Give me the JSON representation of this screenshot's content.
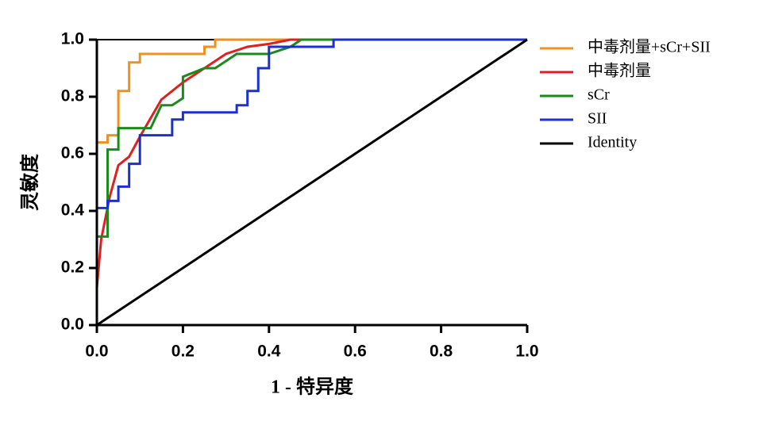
{
  "chart_data": {
    "type": "line",
    "xlabel": "1 - 特异度",
    "ylabel": "灵敏度",
    "xlim": [
      0,
      1
    ],
    "ylim": [
      0,
      1
    ],
    "xticks": [
      {
        "value": 0,
        "label": "0.0"
      },
      0.2,
      0.4,
      0.6,
      0.8,
      {
        "value": 1,
        "label": "1.0"
      }
    ],
    "yticks": [
      {
        "value": 0,
        "label": "0.0"
      },
      0.2,
      0.4,
      0.6,
      0.8,
      {
        "value": 1,
        "label": "1.0"
      }
    ],
    "legend": "right",
    "series": [
      {
        "name": "中毒剂量+sCr+SII",
        "color": "#f0901e",
        "x": [
          0,
          0,
          0.025,
          0.025,
          0.05,
          0.05,
          0.075,
          0.075,
          0.1,
          0.1,
          0.25,
          0.25,
          0.275,
          0.275,
          1
        ],
        "values": [
          0,
          0.64,
          0.64,
          0.665,
          0.665,
          0.82,
          0.82,
          0.92,
          0.92,
          0.95,
          0.95,
          0.975,
          0.975,
          1,
          1
        ]
      },
      {
        "name": "中毒剂量",
        "color": "#e02020",
        "x": [
          0,
          0.01,
          0.03,
          0.05,
          0.075,
          0.1,
          0.15,
          0.2,
          0.25,
          0.3,
          0.35,
          0.4,
          0.45,
          1
        ],
        "values": [
          0.13,
          0.3,
          0.45,
          0.56,
          0.59,
          0.66,
          0.79,
          0.85,
          0.9,
          0.95,
          0.975,
          0.985,
          1,
          1
        ]
      },
      {
        "name": "sCr",
        "color": "#1a8a1a",
        "x": [
          0,
          0,
          0.025,
          0.025,
          0.05,
          0.05,
          0.125,
          0.15,
          0.175,
          0.2,
          0.2,
          0.25,
          0.275,
          0.325,
          0.4,
          0.45,
          0.475,
          1
        ],
        "values": [
          0,
          0.31,
          0.31,
          0.615,
          0.615,
          0.69,
          0.69,
          0.77,
          0.77,
          0.795,
          0.87,
          0.9,
          0.9,
          0.95,
          0.95,
          0.975,
          1,
          1
        ]
      },
      {
        "name": "SII",
        "color": "#1c2fd0",
        "x": [
          0,
          0,
          0.025,
          0.025,
          0.05,
          0.05,
          0.075,
          0.075,
          0.1,
          0.1,
          0.175,
          0.175,
          0.2,
          0.2,
          0.325,
          0.325,
          0.35,
          0.35,
          0.375,
          0.375,
          0.4,
          0.4,
          0.55,
          0.55,
          1
        ],
        "values": [
          0,
          0.41,
          0.41,
          0.435,
          0.435,
          0.485,
          0.485,
          0.565,
          0.565,
          0.665,
          0.665,
          0.72,
          0.72,
          0.745,
          0.745,
          0.77,
          0.77,
          0.82,
          0.82,
          0.9,
          0.9,
          0.975,
          0.975,
          1,
          1
        ]
      },
      {
        "name": "Identity",
        "color": "#000000",
        "x": [
          0,
          1
        ],
        "values": [
          0,
          1
        ]
      }
    ]
  }
}
